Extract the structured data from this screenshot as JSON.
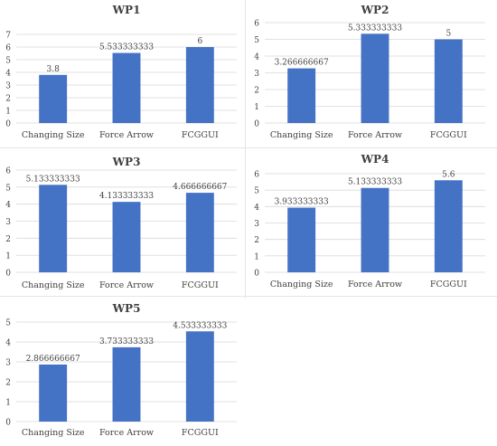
{
  "colors": {
    "bar": "#4472C4",
    "grid": "#d9d9d9",
    "text": "#404040"
  },
  "chart_data": [
    {
      "type": "bar",
      "title": "WP1",
      "categories": [
        "Changing Size",
        "Force Arrow",
        "FCGGUI"
      ],
      "values": [
        3.8,
        5.533333333,
        6
      ],
      "value_labels": [
        "3.8",
        "5.533333333",
        "6"
      ],
      "ylim": [
        0,
        7
      ],
      "yticks": [
        "0",
        "1",
        "2",
        "3",
        "4",
        "5",
        "6",
        "7"
      ],
      "grid": true,
      "legend": "none"
    },
    {
      "type": "bar",
      "title": "WP2",
      "categories": [
        "Changing Size",
        "Force Arrow",
        "FCGGUI"
      ],
      "values": [
        3.266666667,
        5.333333333,
        5
      ],
      "value_labels": [
        "3.266666667",
        "5.333333333",
        "5"
      ],
      "ylim": [
        0,
        6
      ],
      "yticks": [
        "0",
        "1",
        "2",
        "3",
        "4",
        "5",
        "6"
      ],
      "grid": true,
      "legend": "none"
    },
    {
      "type": "bar",
      "title": "WP3",
      "categories": [
        "Changing Size",
        "Force Arrow",
        "FCGGUI"
      ],
      "values": [
        5.133333333,
        4.133333333,
        4.666666667
      ],
      "value_labels": [
        "5.133333333",
        "4.133333333",
        "4.666666667"
      ],
      "ylim": [
        0,
        6
      ],
      "yticks": [
        "0",
        "1",
        "2",
        "3",
        "4",
        "5",
        "6"
      ],
      "grid": true,
      "legend": "none"
    },
    {
      "type": "bar",
      "title": "WP4",
      "categories": [
        "Changing Size",
        "Force Arrow",
        "FCGGUI"
      ],
      "values": [
        3.933333333,
        5.133333333,
        5.6
      ],
      "value_labels": [
        "3.933333333",
        "5.133333333",
        "5.6"
      ],
      "ylim": [
        0,
        6
      ],
      "yticks": [
        "0",
        "1",
        "2",
        "3",
        "4",
        "5",
        "6"
      ],
      "grid": true,
      "legend": "none"
    },
    {
      "type": "bar",
      "title": "WP5",
      "categories": [
        "Changing Size",
        "Force Arrow",
        "FCGGUI"
      ],
      "values": [
        2.866666667,
        3.733333333,
        4.533333333
      ],
      "value_labels": [
        "2.866666667",
        "3.733333333",
        "4.533333333"
      ],
      "ylim": [
        0,
        5
      ],
      "yticks": [
        "0",
        "1",
        "2",
        "3",
        "4",
        "5"
      ],
      "grid": true,
      "legend": "none"
    }
  ]
}
